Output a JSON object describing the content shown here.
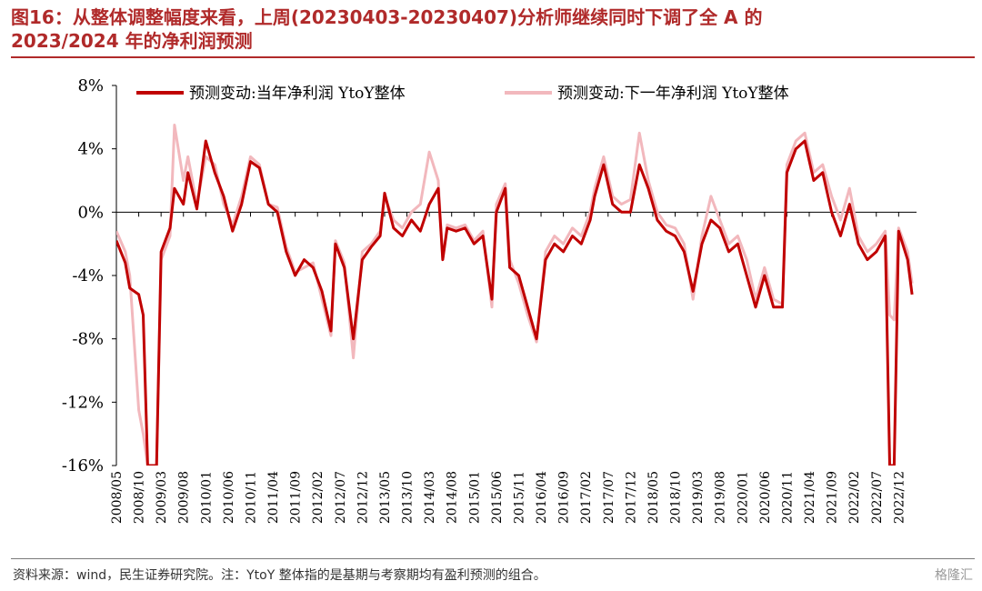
{
  "header": {
    "title_line1": "图16：从整体调整幅度来看，上周(20230403-20230407)分析师继续同时下调了全  A  的",
    "title_line2": "2023/2024 年的净利润预测"
  },
  "footer": {
    "source": "资料来源：wind，民生证券研究院。注：YtoY 整体指的是基期与考察期均有盈利预测的组合。",
    "watermark": "格隆汇"
  },
  "colors": {
    "series1": "#c00000",
    "series2": "#f2b8bd",
    "title": "#b02a2a"
  },
  "chart_data": {
    "type": "line",
    "title": "",
    "xlabel": "",
    "ylabel": "",
    "ylim": [
      -16,
      8
    ],
    "y_ticks": [
      "8%",
      "4%",
      "0%",
      "-4%",
      "-8%",
      "-12%",
      "-16%"
    ],
    "y_tick_values": [
      8,
      4,
      0,
      -4,
      -8,
      -12,
      -16
    ],
    "x_ticks": [
      "2008/05",
      "2008/10",
      "2009/03",
      "2009/08",
      "2010/01",
      "2010/06",
      "2010/11",
      "2011/04",
      "2011/09",
      "2012/02",
      "2012/07",
      "2012/12",
      "2013/05",
      "2013/10",
      "2014/03",
      "2014/08",
      "2015/01",
      "2015/06",
      "2015/11",
      "2016/04",
      "2016/09",
      "2017/02",
      "2017/07",
      "2017/12",
      "2018/05",
      "2018/10",
      "2019/03",
      "2019/08",
      "2020/01",
      "2020/06",
      "2020/11",
      "2021/04",
      "2021/09",
      "2022/02",
      "2022/07",
      "2022/12"
    ],
    "grid": false,
    "legend": "top",
    "series": [
      {
        "name": "预测变动:当年净利润 YtoY整体",
        "color": "#c00000",
        "points": [
          [
            "2008/05",
            -1.8
          ],
          [
            "2008/07",
            -3.2
          ],
          [
            "2008/08",
            -4.8
          ],
          [
            "2008/10",
            -5.2
          ],
          [
            "2008/11",
            -6.5
          ],
          [
            "2008/12",
            -16
          ],
          [
            "2009/02",
            -16
          ],
          [
            "2009/03",
            -2.5
          ],
          [
            "2009/05",
            -1
          ],
          [
            "2009/06",
            1.5
          ],
          [
            "2009/08",
            0.5
          ],
          [
            "2009/09",
            2.5
          ],
          [
            "2009/11",
            0.2
          ],
          [
            "2010/01",
            4.5
          ],
          [
            "2010/03",
            2.5
          ],
          [
            "2010/05",
            1
          ],
          [
            "2010/07",
            -1.2
          ],
          [
            "2010/09",
            0.5
          ],
          [
            "2010/11",
            3.2
          ],
          [
            "2011/01",
            2.8
          ],
          [
            "2011/03",
            0.5
          ],
          [
            "2011/05",
            0
          ],
          [
            "2011/07",
            -2.5
          ],
          [
            "2011/09",
            -4
          ],
          [
            "2011/11",
            -3
          ],
          [
            "2012/01",
            -3.5
          ],
          [
            "2012/03",
            -5
          ],
          [
            "2012/05",
            -7.5
          ],
          [
            "2012/06",
            -2
          ],
          [
            "2012/08",
            -3.5
          ],
          [
            "2012/10",
            -8
          ],
          [
            "2012/12",
            -3
          ],
          [
            "2013/02",
            -2.2
          ],
          [
            "2013/04",
            -1.5
          ],
          [
            "2013/05",
            1.2
          ],
          [
            "2013/07",
            -1
          ],
          [
            "2013/09",
            -1.5
          ],
          [
            "2013/11",
            -0.5
          ],
          [
            "2014/01",
            -1.2
          ],
          [
            "2014/03",
            0.5
          ],
          [
            "2014/05",
            1.5
          ],
          [
            "2014/06",
            -3
          ],
          [
            "2014/07",
            -1
          ],
          [
            "2014/09",
            -1.2
          ],
          [
            "2014/11",
            -1
          ],
          [
            "2015/01",
            -2
          ],
          [
            "2015/03",
            -1.5
          ],
          [
            "2015/05",
            -5.5
          ],
          [
            "2015/06",
            0
          ],
          [
            "2015/08",
            1.5
          ],
          [
            "2015/09",
            -3.5
          ],
          [
            "2015/11",
            -4
          ],
          [
            "2016/01",
            -6
          ],
          [
            "2016/03",
            -8
          ],
          [
            "2016/05",
            -3
          ],
          [
            "2016/07",
            -2
          ],
          [
            "2016/09",
            -2.5
          ],
          [
            "2016/11",
            -1.5
          ],
          [
            "2017/01",
            -2
          ],
          [
            "2017/03",
            -0.5
          ],
          [
            "2017/04",
            1
          ],
          [
            "2017/06",
            3
          ],
          [
            "2017/08",
            0.5
          ],
          [
            "2017/10",
            0
          ],
          [
            "2017/12",
            0
          ],
          [
            "2018/02",
            3
          ],
          [
            "2018/04",
            1.5
          ],
          [
            "2018/06",
            -0.5
          ],
          [
            "2018/08",
            -1.2
          ],
          [
            "2018/10",
            -1.5
          ],
          [
            "2018/12",
            -2.5
          ],
          [
            "2019/02",
            -5
          ],
          [
            "2019/04",
            -2
          ],
          [
            "2019/06",
            -0.5
          ],
          [
            "2019/08",
            -1
          ],
          [
            "2019/10",
            -2.5
          ],
          [
            "2019/12",
            -2
          ],
          [
            "2020/02",
            -4
          ],
          [
            "2020/04",
            -6
          ],
          [
            "2020/06",
            -4
          ],
          [
            "2020/08",
            -6
          ],
          [
            "2020/10",
            -6
          ],
          [
            "2020/11",
            2.5
          ],
          [
            "2021/01",
            4
          ],
          [
            "2021/03",
            4.5
          ],
          [
            "2021/05",
            2
          ],
          [
            "2021/07",
            2.5
          ],
          [
            "2021/09",
            0
          ],
          [
            "2021/11",
            -1.5
          ],
          [
            "2022/01",
            0.5
          ],
          [
            "2022/03",
            -2
          ],
          [
            "2022/05",
            -3
          ],
          [
            "2022/07",
            -2.5
          ],
          [
            "2022/09",
            -1.5
          ],
          [
            "2022/10",
            -16
          ],
          [
            "2022/11",
            -16
          ],
          [
            "2022/12",
            -1.2
          ],
          [
            "2023/02",
            -3
          ],
          [
            "2023/03",
            -5.2
          ]
        ]
      },
      {
        "name": "预测变动:下一年净利润 YtoY整体",
        "color": "#f2b8bd",
        "points": [
          [
            "2008/05",
            -1.2
          ],
          [
            "2008/07",
            -2.5
          ],
          [
            "2008/08",
            -4
          ],
          [
            "2008/10",
            -12.5
          ],
          [
            "2008/11",
            -14
          ],
          [
            "2008/12",
            -16
          ],
          [
            "2009/02",
            -16
          ],
          [
            "2009/03",
            -3
          ],
          [
            "2009/05",
            -1.5
          ],
          [
            "2009/06",
            5.5
          ],
          [
            "2009/08",
            2
          ],
          [
            "2009/09",
            3.5
          ],
          [
            "2009/11",
            0.5
          ],
          [
            "2010/01",
            3.5
          ],
          [
            "2010/03",
            3
          ],
          [
            "2010/05",
            0.5
          ],
          [
            "2010/07",
            -0.8
          ],
          [
            "2010/09",
            1
          ],
          [
            "2010/11",
            3.5
          ],
          [
            "2011/01",
            3
          ],
          [
            "2011/03",
            0.5
          ],
          [
            "2011/05",
            0.3
          ],
          [
            "2011/07",
            -2.2
          ],
          [
            "2011/09",
            -3.8
          ],
          [
            "2011/11",
            -3.5
          ],
          [
            "2012/01",
            -3.2
          ],
          [
            "2012/03",
            -5.5
          ],
          [
            "2012/05",
            -7.8
          ],
          [
            "2012/06",
            -1.8
          ],
          [
            "2012/08",
            -3.2
          ],
          [
            "2012/10",
            -9.2
          ],
          [
            "2012/12",
            -2.5
          ],
          [
            "2013/02",
            -2
          ],
          [
            "2013/04",
            -1.2
          ],
          [
            "2013/05",
            1
          ],
          [
            "2013/07",
            -0.5
          ],
          [
            "2013/09",
            -1
          ],
          [
            "2013/11",
            0
          ],
          [
            "2014/01",
            0.5
          ],
          [
            "2014/03",
            3.8
          ],
          [
            "2014/05",
            2
          ],
          [
            "2014/06",
            -3
          ],
          [
            "2014/07",
            -0.8
          ],
          [
            "2014/09",
            -1
          ],
          [
            "2014/11",
            -0.8
          ],
          [
            "2015/01",
            -1.8
          ],
          [
            "2015/03",
            -1.2
          ],
          [
            "2015/05",
            -6
          ],
          [
            "2015/06",
            0.5
          ],
          [
            "2015/08",
            1.8
          ],
          [
            "2015/09",
            -3
          ],
          [
            "2015/11",
            -4.5
          ],
          [
            "2016/01",
            -6.5
          ],
          [
            "2016/03",
            -8.2
          ],
          [
            "2016/05",
            -2.5
          ],
          [
            "2016/07",
            -1.5
          ],
          [
            "2016/09",
            -2
          ],
          [
            "2016/11",
            -1
          ],
          [
            "2017/01",
            -1.5
          ],
          [
            "2017/03",
            0
          ],
          [
            "2017/04",
            1.5
          ],
          [
            "2017/06",
            3.5
          ],
          [
            "2017/08",
            1
          ],
          [
            "2017/10",
            0.5
          ],
          [
            "2017/12",
            0.8
          ],
          [
            "2018/02",
            5
          ],
          [
            "2018/04",
            2
          ],
          [
            "2018/06",
            0
          ],
          [
            "2018/08",
            -0.8
          ],
          [
            "2018/10",
            -1
          ],
          [
            "2018/12",
            -2
          ],
          [
            "2019/02",
            -5.5
          ],
          [
            "2019/04",
            -1.5
          ],
          [
            "2019/06",
            1
          ],
          [
            "2019/08",
            -0.5
          ],
          [
            "2019/10",
            -2
          ],
          [
            "2019/12",
            -1.5
          ],
          [
            "2020/02",
            -3
          ],
          [
            "2020/04",
            -5.5
          ],
          [
            "2020/06",
            -3.5
          ],
          [
            "2020/08",
            -5.5
          ],
          [
            "2020/10",
            -5.8
          ],
          [
            "2020/11",
            3
          ],
          [
            "2021/01",
            4.5
          ],
          [
            "2021/03",
            5
          ],
          [
            "2021/05",
            2.5
          ],
          [
            "2021/07",
            3
          ],
          [
            "2021/09",
            1
          ],
          [
            "2021/11",
            -0.5
          ],
          [
            "2022/01",
            1.5
          ],
          [
            "2022/03",
            -1.5
          ],
          [
            "2022/05",
            -2.5
          ],
          [
            "2022/07",
            -2
          ],
          [
            "2022/09",
            -1.2
          ],
          [
            "2022/10",
            -6.5
          ],
          [
            "2022/11",
            -6.8
          ],
          [
            "2022/12",
            -1
          ],
          [
            "2023/02",
            -2.5
          ],
          [
            "2023/03",
            -4.5
          ]
        ]
      }
    ]
  }
}
